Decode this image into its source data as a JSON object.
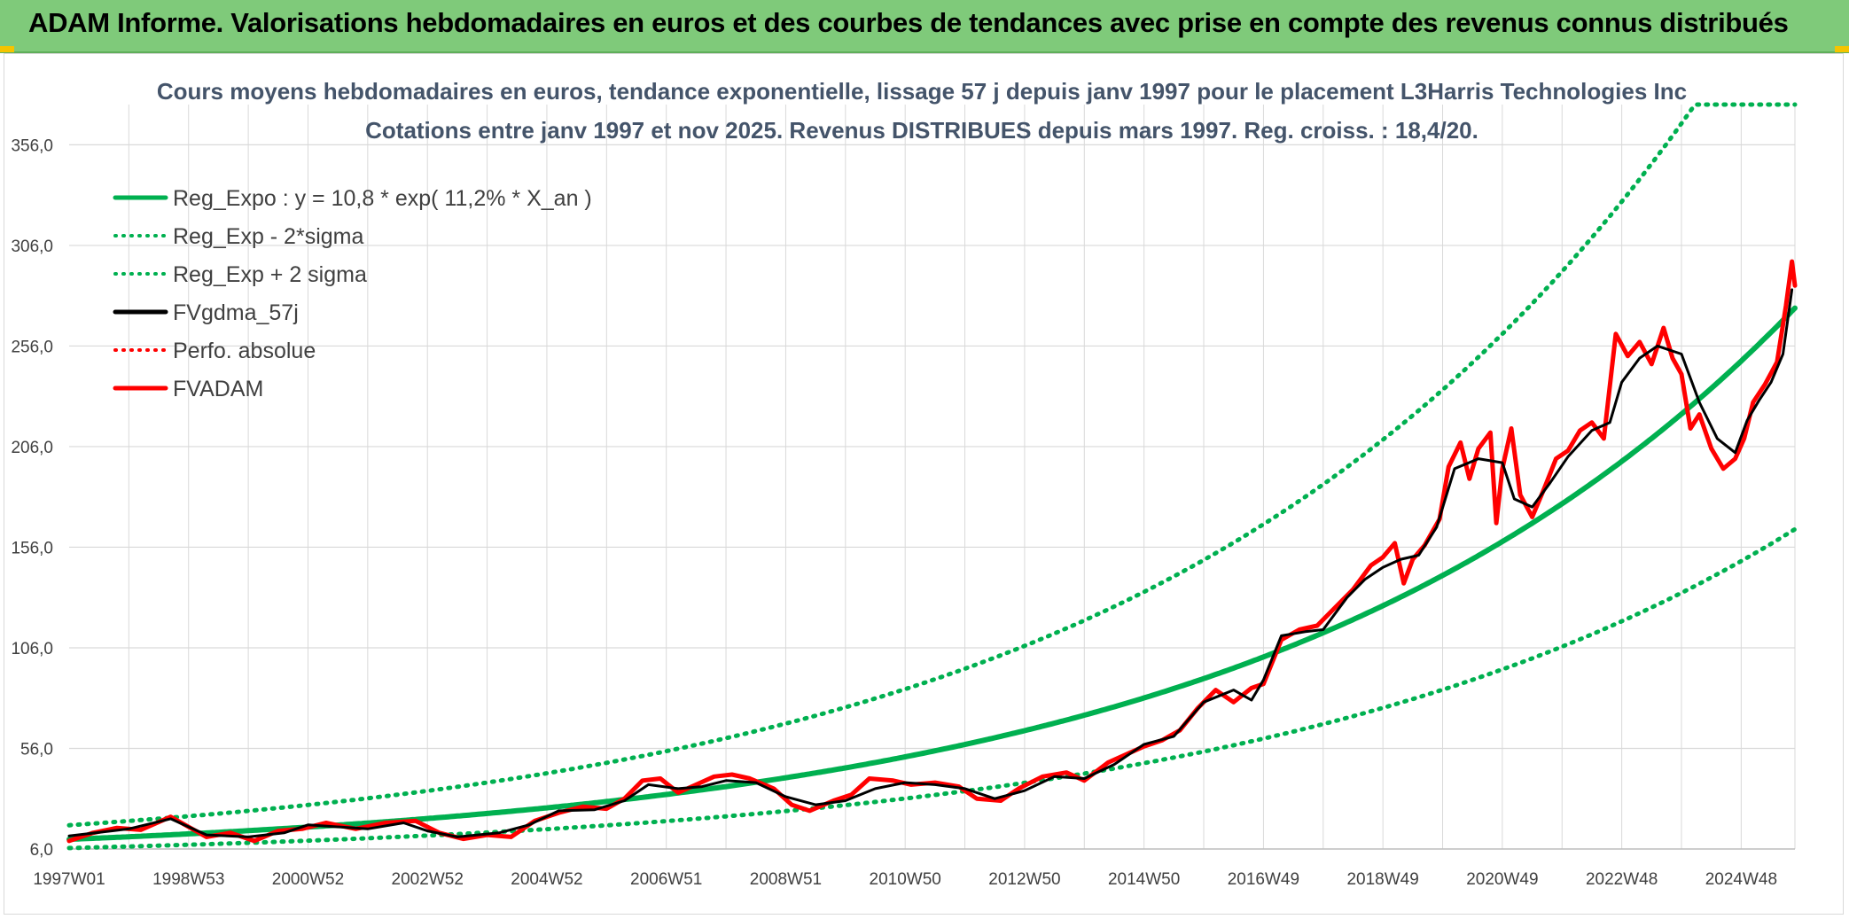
{
  "header": {
    "title": "ADAM Informe. Valorisations hebdomadaires en euros et des courbes de tendances avec prise en compte des revenus connus distribués"
  },
  "colors": {
    "banner": "#7fca7a",
    "regression": "#00b050",
    "smoothed": "#000000",
    "price": "#ff0000",
    "grid": "#d9d9d9"
  },
  "chart_data": {
    "type": "line",
    "title_line1": "Cours moyens hebdomadaires en euros, tendance exponentielle, lissage 57 j depuis janv 1997 pour le placement L3Harris Technologies Inc",
    "title_line2": "Cotations entre janv 1997 et nov 2025. Revenus DISTRIBUES depuis mars 1997. Reg. croiss. : 18,4/20.",
    "xlabel": "",
    "ylabel": "",
    "x_range": [
      1997.0,
      2025.9
    ],
    "ylim": [
      6,
      376
    ],
    "y_ticks": [
      "6,0",
      "56,0",
      "106,0",
      "156,0",
      "206,0",
      "256,0",
      "306,0",
      "356,0"
    ],
    "y_tick_values": [
      6,
      56,
      106,
      156,
      206,
      256,
      306,
      356
    ],
    "x_tick_labels": [
      "1997W01",
      "1998W53",
      "2000W52",
      "2002W52",
      "2004W52",
      "2006W51",
      "2008W51",
      "2010W50",
      "2012W50",
      "2014W50",
      "2016W49",
      "2018W49",
      "2020W49",
      "2022W48",
      "2024W48"
    ],
    "x_tick_values": [
      1997.0,
      1999.0,
      2001.0,
      2003.0,
      2005.0,
      2007.0,
      2009.0,
      2011.0,
      2013.0,
      2015.0,
      2017.0,
      2019.0,
      2021.0,
      2023.0,
      2025.0
    ],
    "grid": true,
    "legend_position": "top-left",
    "legend": [
      {
        "label": "Reg_Expo : y = 10,8 * exp( 11,2% *  X_an )",
        "color": "#00b050",
        "style": "solid"
      },
      {
        "label": "Reg_Exp - 2*sigma",
        "color": "#00b050",
        "style": "dotted"
      },
      {
        "label": "Reg_Exp + 2 sigma",
        "color": "#00b050",
        "style": "dotted"
      },
      {
        "label": "FVgdma_57j",
        "color": "#000000",
        "style": "solid"
      },
      {
        "label": "Perfo. absolue",
        "color": "#ff0000",
        "style": "dotted"
      },
      {
        "label": "FVADAM",
        "color": "#ff0000",
        "style": "solid"
      }
    ],
    "series": [
      {
        "name": "Reg_Expo : y = 10,8 * exp( 11,2% *  X_an )",
        "kind": "exp",
        "a": 10.8,
        "b": 0.112,
        "factor": 1.0,
        "points": [
          [
            1997.0,
            10.8
          ],
          [
            2000.0,
            15.1
          ],
          [
            2004.0,
            23.7
          ],
          [
            2008.0,
            37.0
          ],
          [
            2012.0,
            57.9
          ],
          [
            2015.0,
            81.2
          ],
          [
            2018.0,
            113.8
          ],
          [
            2021.0,
            159.4
          ],
          [
            2024.0,
            223.5
          ],
          [
            2025.9,
            276.7
          ]
        ]
      },
      {
        "name": "Reg_Exp - 2*sigma",
        "kind": "exp",
        "a": 10.8,
        "b": 0.112,
        "factor": 0.6,
        "points": [
          [
            1997.0,
            6.5
          ],
          [
            2005.0,
            16.6
          ],
          [
            2010.0,
            28.9
          ],
          [
            2015.0,
            48.7
          ],
          [
            2020.0,
            85.8
          ],
          [
            2025.9,
            166.0
          ]
        ]
      },
      {
        "name": "Reg_Exp + 2 sigma",
        "kind": "exp",
        "a": 10.8,
        "b": 0.112,
        "factor": 1.65,
        "points": [
          [
            1997.0,
            17.8
          ],
          [
            2005.0,
            43.6
          ],
          [
            2010.0,
            76.0
          ],
          [
            2015.0,
            133.9
          ],
          [
            2020.0,
            235.6
          ],
          [
            2024.5,
            376.0
          ]
        ]
      },
      {
        "name": "FVgdma_57j",
        "kind": "smooth",
        "points": [
          [
            1997.0,
            12.5
          ],
          [
            1998.0,
            16.0
          ],
          [
            1998.7,
            21.0
          ],
          [
            1999.3,
            13.0
          ],
          [
            2000.0,
            12.0
          ],
          [
            2000.6,
            14.0
          ],
          [
            2001.0,
            18.0
          ],
          [
            2002.0,
            16.0
          ],
          [
            2002.6,
            19.0
          ],
          [
            2003.0,
            15.0
          ],
          [
            2003.5,
            12.0
          ],
          [
            2004.2,
            14.0
          ],
          [
            2004.7,
            18.0
          ],
          [
            2005.2,
            25.0
          ],
          [
            2005.8,
            25.5
          ],
          [
            2006.3,
            30.0
          ],
          [
            2006.7,
            38.0
          ],
          [
            2007.2,
            36.0
          ],
          [
            2007.6,
            37.0
          ],
          [
            2008.0,
            40.0
          ],
          [
            2008.5,
            39.0
          ],
          [
            2009.0,
            32.0
          ],
          [
            2009.5,
            28.0
          ],
          [
            2010.0,
            30.0
          ],
          [
            2010.5,
            36.0
          ],
          [
            2011.0,
            39.0
          ],
          [
            2011.5,
            38.0
          ],
          [
            2012.0,
            36.0
          ],
          [
            2012.5,
            31.0
          ],
          [
            2013.0,
            35.0
          ],
          [
            2013.5,
            42.0
          ],
          [
            2014.0,
            41.0
          ],
          [
            2014.5,
            48.0
          ],
          [
            2015.0,
            58.0
          ],
          [
            2015.5,
            62.0
          ],
          [
            2016.0,
            79.0
          ],
          [
            2016.5,
            85.0
          ],
          [
            2016.8,
            80.0
          ],
          [
            2017.0,
            90.0
          ],
          [
            2017.3,
            112.0
          ],
          [
            2017.7,
            114.0
          ],
          [
            2018.0,
            115.0
          ],
          [
            2018.4,
            131.0
          ],
          [
            2018.7,
            140.0
          ],
          [
            2019.0,
            146.0
          ],
          [
            2019.3,
            150.0
          ],
          [
            2019.6,
            152.0
          ],
          [
            2019.9,
            166.0
          ],
          [
            2020.2,
            195.0
          ],
          [
            2020.6,
            200.0
          ],
          [
            2021.0,
            198.0
          ],
          [
            2021.2,
            180.0
          ],
          [
            2021.5,
            176.0
          ],
          [
            2021.8,
            188.0
          ],
          [
            2022.1,
            201.0
          ],
          [
            2022.5,
            214.0
          ],
          [
            2022.8,
            218.0
          ],
          [
            2023.0,
            238.0
          ],
          [
            2023.3,
            250.0
          ],
          [
            2023.6,
            256.0
          ],
          [
            2024.0,
            252.0
          ],
          [
            2024.3,
            228.0
          ],
          [
            2024.6,
            210.0
          ],
          [
            2024.9,
            203.0
          ],
          [
            2025.1,
            219.0
          ],
          [
            2025.3,
            229.0
          ],
          [
            2025.5,
            238.0
          ],
          [
            2025.7,
            252.0
          ],
          [
            2025.85,
            284.0
          ]
        ]
      },
      {
        "name": "FVADAM",
        "kind": "price",
        "points": [
          [
            1997.0,
            10.0
          ],
          [
            1997.4,
            14.0
          ],
          [
            1997.8,
            16.5
          ],
          [
            1998.2,
            15.5
          ],
          [
            1998.7,
            22.0
          ],
          [
            1999.0,
            17.0
          ],
          [
            1999.3,
            12.0
          ],
          [
            1999.7,
            14.0
          ],
          [
            2000.1,
            10.0
          ],
          [
            2000.5,
            15.0
          ],
          [
            2000.9,
            16.0
          ],
          [
            2001.3,
            19.0
          ],
          [
            2001.8,
            16.0
          ],
          [
            2002.3,
            19.0
          ],
          [
            2002.8,
            20.0
          ],
          [
            2003.2,
            14.0
          ],
          [
            2003.6,
            11.0
          ],
          [
            2004.0,
            13.0
          ],
          [
            2004.4,
            12.0
          ],
          [
            2004.8,
            20.0
          ],
          [
            2005.2,
            24.0
          ],
          [
            2005.6,
            27.0
          ],
          [
            2006.0,
            26.0
          ],
          [
            2006.3,
            31.0
          ],
          [
            2006.6,
            40.0
          ],
          [
            2006.9,
            41.0
          ],
          [
            2007.2,
            34.0
          ],
          [
            2007.5,
            38.0
          ],
          [
            2007.8,
            42.0
          ],
          [
            2008.1,
            43.0
          ],
          [
            2008.4,
            41.0
          ],
          [
            2008.8,
            36.0
          ],
          [
            2009.1,
            28.0
          ],
          [
            2009.4,
            25.0
          ],
          [
            2009.8,
            30.0
          ],
          [
            2010.1,
            33.0
          ],
          [
            2010.4,
            41.0
          ],
          [
            2010.8,
            40.0
          ],
          [
            2011.1,
            38.0
          ],
          [
            2011.5,
            39.0
          ],
          [
            2011.9,
            37.0
          ],
          [
            2012.2,
            31.0
          ],
          [
            2012.6,
            30.0
          ],
          [
            2012.9,
            36.0
          ],
          [
            2013.3,
            42.0
          ],
          [
            2013.7,
            44.0
          ],
          [
            2014.0,
            40.0
          ],
          [
            2014.4,
            49.0
          ],
          [
            2014.7,
            53.0
          ],
          [
            2015.0,
            57.0
          ],
          [
            2015.3,
            60.0
          ],
          [
            2015.6,
            65.0
          ],
          [
            2015.9,
            76.0
          ],
          [
            2016.2,
            85.0
          ],
          [
            2016.5,
            79.0
          ],
          [
            2016.8,
            86.0
          ],
          [
            2017.0,
            88.0
          ],
          [
            2017.3,
            110.0
          ],
          [
            2017.6,
            115.0
          ],
          [
            2017.9,
            117.0
          ],
          [
            2018.2,
            126.0
          ],
          [
            2018.5,
            135.0
          ],
          [
            2018.8,
            147.0
          ],
          [
            2019.0,
            151.0
          ],
          [
            2019.2,
            158.0
          ],
          [
            2019.35,
            138.0
          ],
          [
            2019.5,
            150.0
          ],
          [
            2019.7,
            157.0
          ],
          [
            2019.95,
            170.0
          ],
          [
            2020.1,
            196.0
          ],
          [
            2020.3,
            208.0
          ],
          [
            2020.45,
            190.0
          ],
          [
            2020.6,
            205.0
          ],
          [
            2020.8,
            213.0
          ],
          [
            2020.9,
            168.0
          ],
          [
            2021.0,
            195.0
          ],
          [
            2021.15,
            215.0
          ],
          [
            2021.3,
            182.0
          ],
          [
            2021.5,
            171.0
          ],
          [
            2021.7,
            185.0
          ],
          [
            2021.9,
            200.0
          ],
          [
            2022.1,
            204.0
          ],
          [
            2022.3,
            214.0
          ],
          [
            2022.5,
            218.0
          ],
          [
            2022.7,
            210.0
          ],
          [
            2022.9,
            262.0
          ],
          [
            2023.1,
            251.0
          ],
          [
            2023.3,
            258.0
          ],
          [
            2023.5,
            247.0
          ],
          [
            2023.7,
            265.0
          ],
          [
            2023.85,
            250.0
          ],
          [
            2024.0,
            242.0
          ],
          [
            2024.15,
            215.0
          ],
          [
            2024.3,
            222.0
          ],
          [
            2024.5,
            205.0
          ],
          [
            2024.7,
            195.0
          ],
          [
            2024.9,
            200.0
          ],
          [
            2025.05,
            210.0
          ],
          [
            2025.2,
            228.0
          ],
          [
            2025.4,
            237.0
          ],
          [
            2025.6,
            248.0
          ],
          [
            2025.75,
            276.0
          ],
          [
            2025.85,
            298.0
          ],
          [
            2025.9,
            286.0
          ]
        ]
      }
    ]
  }
}
